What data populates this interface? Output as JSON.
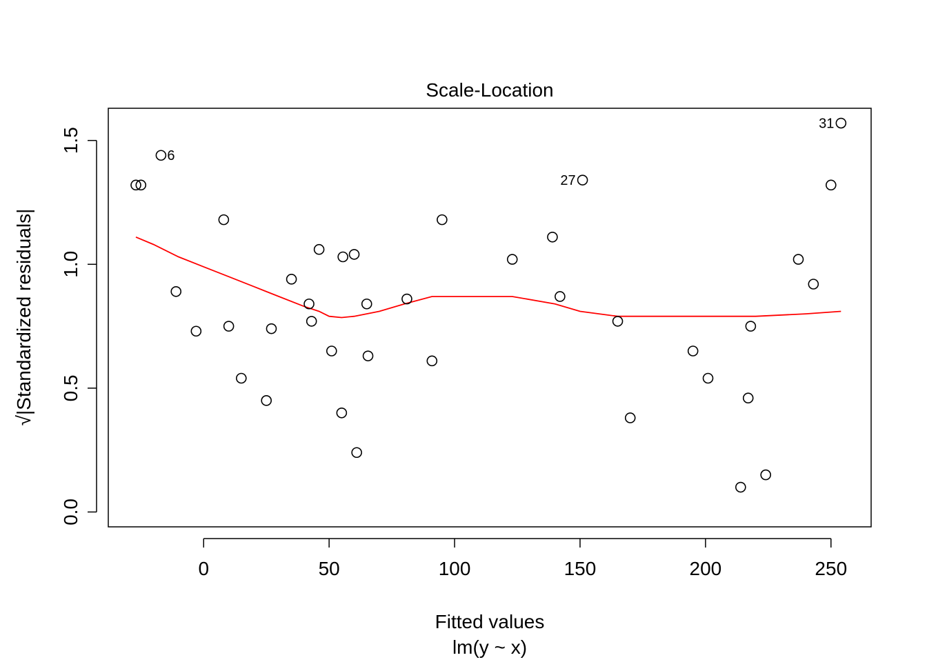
{
  "chart_data": {
    "type": "scatter",
    "title": "Scale-Location",
    "xlabel": "Fitted values",
    "xlabel2": "lm(y ~ x)",
    "ylabel": "√|Standardized residuals|",
    "xlim": [
      -38,
      266
    ],
    "ylim": [
      -0.06,
      1.63
    ],
    "xticks": [
      0,
      50,
      100,
      150,
      200,
      250
    ],
    "yticks": [
      0.0,
      0.5,
      1.0,
      1.5
    ],
    "xtick_labels": [
      "0",
      "50",
      "100",
      "150",
      "200",
      "250"
    ],
    "ytick_labels": [
      "0.0",
      "0.5",
      "1.0",
      "1.5"
    ],
    "grid": false,
    "series": [
      {
        "points": [
          {
            "x": -27,
            "y": 1.32
          },
          {
            "x": -25,
            "y": 1.32
          },
          {
            "x": -17,
            "y": 1.44,
            "label": "6"
          },
          {
            "x": -11,
            "y": 0.89
          },
          {
            "x": -3,
            "y": 0.73
          },
          {
            "x": 8,
            "y": 1.18
          },
          {
            "x": 10,
            "y": 0.75
          },
          {
            "x": 15,
            "y": 0.54
          },
          {
            "x": 25,
            "y": 0.45
          },
          {
            "x": 27,
            "y": 0.74
          },
          {
            "x": 35,
            "y": 0.94
          },
          {
            "x": 42,
            "y": 0.84
          },
          {
            "x": 43,
            "y": 0.77
          },
          {
            "x": 46,
            "y": 1.06
          },
          {
            "x": 51,
            "y": 0.65
          },
          {
            "x": 55,
            "y": 0.4
          },
          {
            "x": 55.5,
            "y": 1.03
          },
          {
            "x": 60,
            "y": 1.04
          },
          {
            "x": 61,
            "y": 0.24
          },
          {
            "x": 65,
            "y": 0.84
          },
          {
            "x": 65.5,
            "y": 0.63
          },
          {
            "x": 81,
            "y": 0.86
          },
          {
            "x": 91,
            "y": 0.61
          },
          {
            "x": 95,
            "y": 1.18
          },
          {
            "x": 123,
            "y": 1.02
          },
          {
            "x": 139,
            "y": 1.11
          },
          {
            "x": 142,
            "y": 0.87
          },
          {
            "x": 151,
            "y": 1.34,
            "label": "27"
          },
          {
            "x": 165,
            "y": 0.77
          },
          {
            "x": 170,
            "y": 0.38
          },
          {
            "x": 195,
            "y": 0.65
          },
          {
            "x": 201,
            "y": 0.54
          },
          {
            "x": 214,
            "y": 0.1
          },
          {
            "x": 217,
            "y": 0.46
          },
          {
            "x": 218,
            "y": 0.75
          },
          {
            "x": 224,
            "y": 0.15
          },
          {
            "x": 237,
            "y": 1.02
          },
          {
            "x": 243,
            "y": 0.92
          },
          {
            "x": 250,
            "y": 1.32
          },
          {
            "x": 254,
            "y": 1.57,
            "label": "31"
          }
        ]
      }
    ],
    "smooth_line": {
      "color": "#ff0000",
      "x": [
        -27,
        -20,
        -10,
        0,
        10,
        20,
        30,
        40,
        46,
        50,
        55,
        60,
        70,
        80,
        91,
        100,
        110,
        123,
        140,
        150,
        165,
        180,
        200,
        220,
        240,
        254
      ],
      "y": [
        1.11,
        1.08,
        1.03,
        0.99,
        0.95,
        0.91,
        0.87,
        0.83,
        0.81,
        0.79,
        0.785,
        0.79,
        0.81,
        0.84,
        0.87,
        0.87,
        0.87,
        0.87,
        0.84,
        0.81,
        0.79,
        0.79,
        0.79,
        0.79,
        0.8,
        0.81
      ]
    }
  }
}
